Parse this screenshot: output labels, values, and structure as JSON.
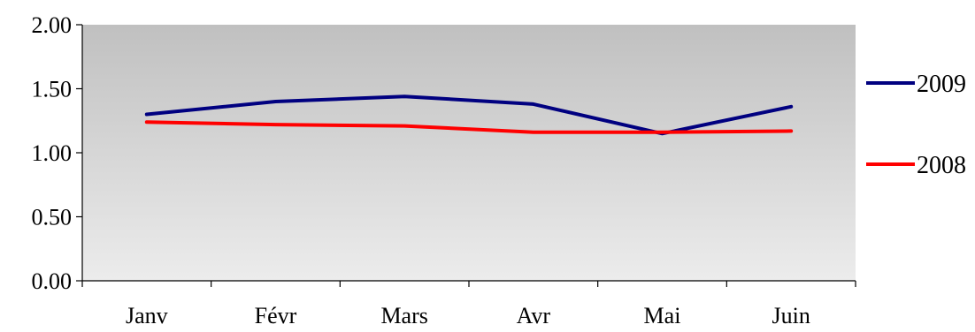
{
  "chart_data": {
    "type": "line",
    "categories": [
      "Janv",
      "Févr",
      "Mars",
      "Avr",
      "Mai",
      "Juin"
    ],
    "series": [
      {
        "name": "2009",
        "color": "#000080",
        "values": [
          1.3,
          1.4,
          1.44,
          1.38,
          1.15,
          1.36
        ]
      },
      {
        "name": "2008",
        "color": "#ff0000",
        "values": [
          1.24,
          1.22,
          1.21,
          1.16,
          1.16,
          1.17
        ]
      }
    ],
    "ylim": [
      0,
      2
    ],
    "yticks": [
      "0.00",
      "0.50",
      "1.00",
      "1.50",
      "2.00"
    ],
    "title": "",
    "xlabel": "",
    "ylabel": "",
    "grid": false,
    "legend": "right",
    "plot_background": "gradient gray to light gray"
  }
}
